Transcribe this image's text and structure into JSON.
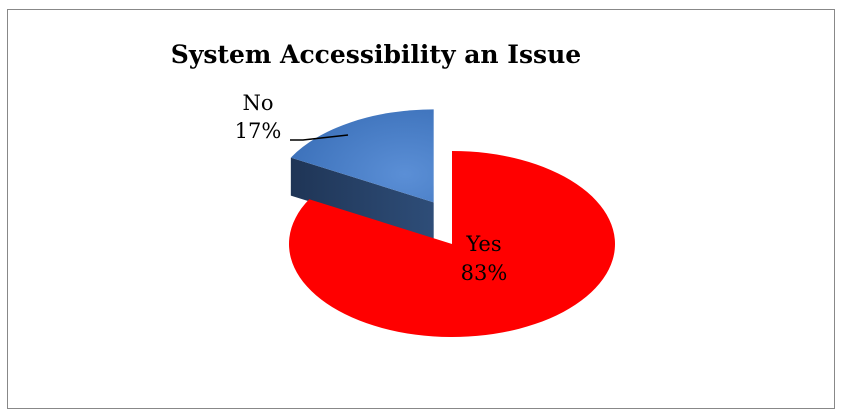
{
  "chart_data": {
    "type": "pie",
    "title": "System Accessibility an Issue",
    "style": "3d-exploded",
    "slices": [
      {
        "label": "Yes",
        "value": 83,
        "value_label": "83%",
        "color": "#ff0000"
      },
      {
        "label": "No",
        "value": 17,
        "value_label": "17%",
        "color": "#4f81bd"
      }
    ],
    "legend": "none"
  }
}
